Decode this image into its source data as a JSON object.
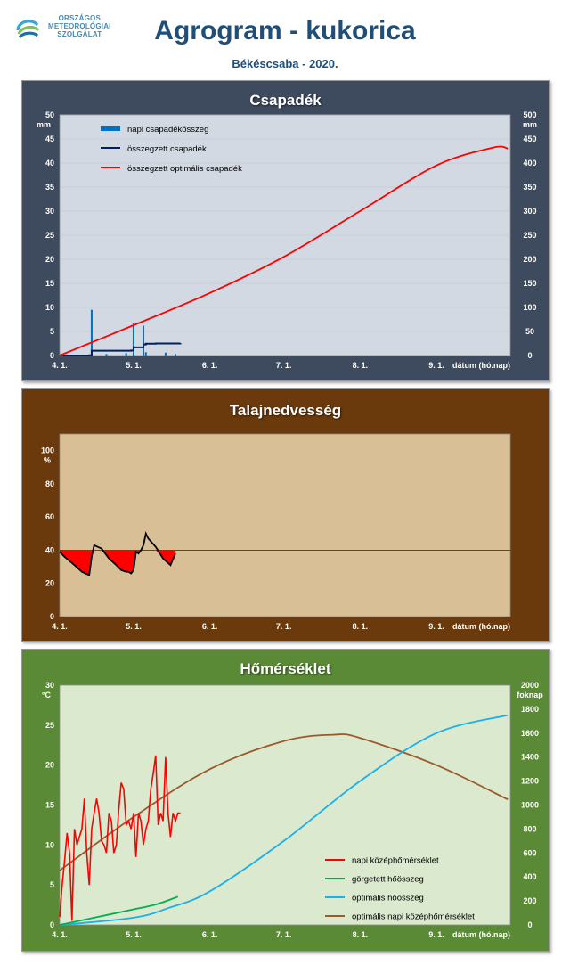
{
  "header": {
    "logo_lines": [
      "ORSZÁGOS",
      "METEOROLÓGIAI",
      "SZOLGÁLAT"
    ],
    "title": "Agrogram - kukorica",
    "subtitle": "Békéscsaba - 2020."
  },
  "colors": {
    "title": "#1f4e79",
    "panel_precip": "#3e4b5e",
    "panel_soil": "#6b3a0c",
    "panel_temp": "#5b8a36",
    "plot_precip": "#d3d9e2",
    "plot_soil": "#d9bf96",
    "plot_temp": "#dbe9cf"
  },
  "chart_data": [
    {
      "type": "bar+line",
      "title": "Csapadék",
      "ylabel": "mm",
      "y2label": "mm",
      "xlabel": "dátum (hó.nap)",
      "x_ticks": [
        "4. 1.",
        "5. 1.",
        "6. 1.",
        "7. 1.",
        "8. 1.",
        "9. 1."
      ],
      "x_range_days": [
        0,
        183
      ],
      "ylim": [
        0,
        50
      ],
      "y2lim": [
        0,
        500
      ],
      "y_ticks": [
        0,
        5,
        10,
        15,
        20,
        25,
        30,
        35,
        40,
        45,
        50
      ],
      "y2_ticks": [
        0,
        50,
        100,
        150,
        200,
        250,
        300,
        350,
        400,
        450,
        500
      ],
      "legend_position": "top-left",
      "series": [
        {
          "name": "napi csapadékösszeg",
          "kind": "bar",
          "axis": "left",
          "color": "#0070c0",
          "x": [
            "4. 13.",
            "4. 14.",
            "4. 20.",
            "4. 28.",
            "5. 1.",
            "5. 5.",
            "5. 6.",
            "5. 14.",
            "5. 18."
          ],
          "values": [
            0.2,
            9.5,
            0.3,
            0.5,
            6.7,
            6.2,
            0.7,
            0.6,
            0.3
          ]
        },
        {
          "name": "összegzett csapadék",
          "kind": "line",
          "axis": "right",
          "color": "#002060",
          "x": [
            "4. 1.",
            "4. 13.",
            "4. 14.",
            "4. 30.",
            "5. 1.",
            "5. 5.",
            "5. 6.",
            "5. 10.",
            "5. 20."
          ],
          "values": [
            0,
            0.5,
            10,
            10.5,
            17,
            23,
            24.5,
            25,
            26
          ]
        },
        {
          "name": "összegzett optimális csapadék",
          "kind": "line",
          "axis": "right",
          "color": "#ff0000",
          "x": [
            "4. 1.",
            "5. 1.",
            "6. 1.",
            "7. 1.",
            "8. 1.",
            "9. 1.",
            "9. 24.",
            "9. 30."
          ],
          "values": [
            0,
            63,
            130,
            205,
            300,
            395,
            432,
            430
          ]
        }
      ]
    },
    {
      "type": "line",
      "title": "Talajnedvesség",
      "ylabel": "%",
      "xlabel": "dátum (hó.nap)",
      "x_ticks": [
        "4. 1.",
        "5. 1.",
        "6. 1.",
        "7. 1.",
        "8. 1.",
        "9. 1."
      ],
      "x_range_days": [
        0,
        183
      ],
      "ylim": [
        0,
        110
      ],
      "y_ticks": [
        0,
        20,
        40,
        60,
        80,
        100
      ],
      "threshold": 40,
      "series": [
        {
          "name": "talajnedvesség",
          "color": "#000000",
          "x": [
            "4. 1.",
            "4. 3.",
            "4. 7.",
            "4. 10.",
            "4. 13.",
            "4. 14.",
            "4. 15.",
            "4. 18.",
            "4. 21.",
            "4. 24.",
            "4. 26.",
            "4. 28.",
            "4. 29.",
            "4. 30.",
            "5. 1.",
            "5. 2.",
            "5. 3.",
            "5. 4.",
            "5. 5.",
            "5. 6.",
            "5. 7.",
            "5. 10.",
            "5. 13.",
            "5. 16.",
            "5. 18."
          ],
          "values": [
            39,
            36,
            31,
            27,
            25,
            36,
            43,
            41,
            35,
            31,
            28,
            27,
            27,
            26,
            28,
            39,
            38,
            40,
            43,
            50,
            47,
            42,
            35,
            31,
            38
          ]
        }
      ]
    },
    {
      "type": "line",
      "title": "Hőmérséklet",
      "ylabel": "°C",
      "y2label": "foknap",
      "xlabel": "dátum (hó.nap)",
      "x_ticks": [
        "4. 1.",
        "5. 1.",
        "6. 1.",
        "7. 1.",
        "8. 1.",
        "9. 1."
      ],
      "x_range_days": [
        0,
        183
      ],
      "ylim": [
        0,
        30
      ],
      "y2lim": [
        0,
        2000
      ],
      "y_ticks": [
        0,
        5,
        10,
        15,
        20,
        25,
        30
      ],
      "y2_ticks": [
        0,
        200,
        400,
        600,
        800,
        1000,
        1200,
        1400,
        1600,
        1800,
        2000
      ],
      "legend_position": "bottom-right",
      "series": [
        {
          "name": "napi középhőmérséklet",
          "axis": "left",
          "color": "#ff0000",
          "x": [
            "4. 1.",
            "4. 2.",
            "4. 3.",
            "4. 4.",
            "4. 5.",
            "4. 6.",
            "4. 7.",
            "4. 8.",
            "4. 9.",
            "4. 10.",
            "4. 11.",
            "4. 12.",
            "4. 13.",
            "4. 14.",
            "4. 15.",
            "4. 16.",
            "4. 17.",
            "4. 18.",
            "4. 19.",
            "4. 20.",
            "4. 21.",
            "4. 22.",
            "4. 23.",
            "4. 24.",
            "4. 25.",
            "4. 26.",
            "4. 27.",
            "4. 28.",
            "4. 29.",
            "4. 30.",
            "5. 1.",
            "5. 2.",
            "5. 3.",
            "5. 4.",
            "5. 5.",
            "5. 6.",
            "5. 7.",
            "5. 8.",
            "5. 9.",
            "5. 10.",
            "5. 11.",
            "5. 12.",
            "5. 13.",
            "5. 14.",
            "5. 15.",
            "5. 16.",
            "5. 17.",
            "5. 18.",
            "5. 19.",
            "5. 20."
          ],
          "values": [
            1,
            5,
            8,
            11.5,
            9,
            0.5,
            12,
            10,
            11,
            12,
            15.8,
            9,
            5,
            12,
            14,
            15.8,
            14,
            10.5,
            10,
            9,
            14,
            13,
            9,
            10,
            14.5,
            17.8,
            17,
            12.5,
            13,
            12,
            14,
            8.5,
            14,
            13,
            10,
            12,
            13,
            17,
            19,
            21.2,
            12.5,
            14,
            13,
            21,
            14,
            11,
            14,
            13,
            14,
            14
          ]
        },
        {
          "name": "görgetett hőösszeg",
          "axis": "right",
          "color": "#00b050",
          "x": [
            "4. 1.",
            "4. 15.",
            "5. 1.",
            "5. 10.",
            "5. 19."
          ],
          "values": [
            0,
            60,
            130,
            170,
            235
          ]
        },
        {
          "name": "optimális hőösszeg",
          "axis": "right",
          "color": "#1ab0e8",
          "x": [
            "4. 1.",
            "5. 1.",
            "5. 15.",
            "6. 1.",
            "7. 1.",
            "8. 1.",
            "9. 1.",
            "9. 30."
          ],
          "values": [
            0,
            60,
            140,
            280,
            700,
            1200,
            1600,
            1750
          ]
        },
        {
          "name": "optimális napi középhőmérséklet",
          "axis": "left",
          "color": "#9c5a2a",
          "x": [
            "4. 1.",
            "5. 1.",
            "6. 1.",
            "7. 1.",
            "7. 21.",
            "8. 1.",
            "9. 1.",
            "9. 30."
          ],
          "values": [
            6.8,
            13.5,
            19.5,
            23,
            23.8,
            23.4,
            20,
            15.7
          ]
        }
      ]
    }
  ]
}
